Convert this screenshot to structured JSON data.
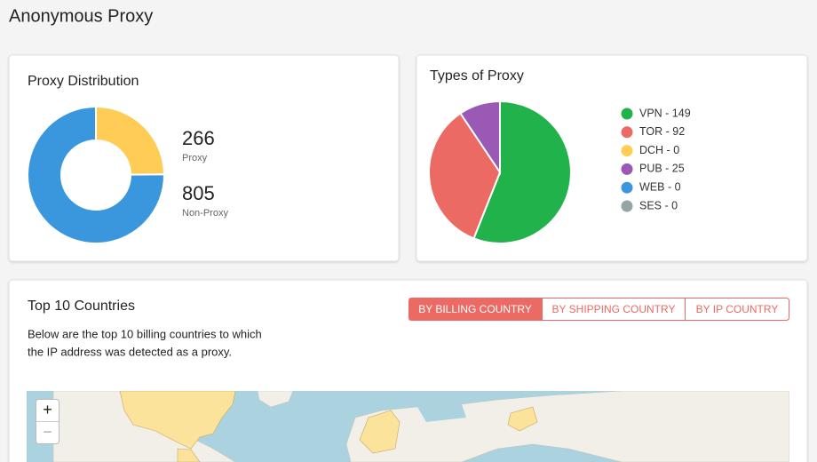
{
  "header": {
    "title": "Anonymous Proxy"
  },
  "distribution": {
    "title": "Proxy Distribution",
    "type": "donut",
    "segments": [
      {
        "name": "Proxy",
        "value": 266,
        "color": "#ffcd56"
      },
      {
        "name": "Non-Proxy",
        "value": 805,
        "color": "#3a97dd"
      }
    ]
  },
  "types": {
    "title": "Types of Proxy",
    "type": "pie",
    "slices": [
      {
        "label": "VPN - 149",
        "value": 149,
        "color": "#22b24c"
      },
      {
        "label": "TOR - 92",
        "value": 92,
        "color": "#ec6a64"
      },
      {
        "label": "DCH - 0",
        "value": 0,
        "color": "#ffcd56"
      },
      {
        "label": "PUB - 25",
        "value": 25,
        "color": "#9b59b6"
      },
      {
        "label": "WEB - 0",
        "value": 0,
        "color": "#3a97dd"
      },
      {
        "label": "SES - 0",
        "value": 0,
        "color": "#95a5a6"
      }
    ]
  },
  "countries": {
    "title": "Top 10 Countries",
    "tabs": [
      "BY BILLING COUNTRY",
      "BY SHIPPING COUNTRY",
      "BY IP COUNTRY"
    ],
    "description": [
      "Below are the top 10 billing countries to which",
      "the IP address was detected as a proxy."
    ],
    "map": {
      "zoom_in": "+",
      "zoom_out": "−"
    }
  }
}
